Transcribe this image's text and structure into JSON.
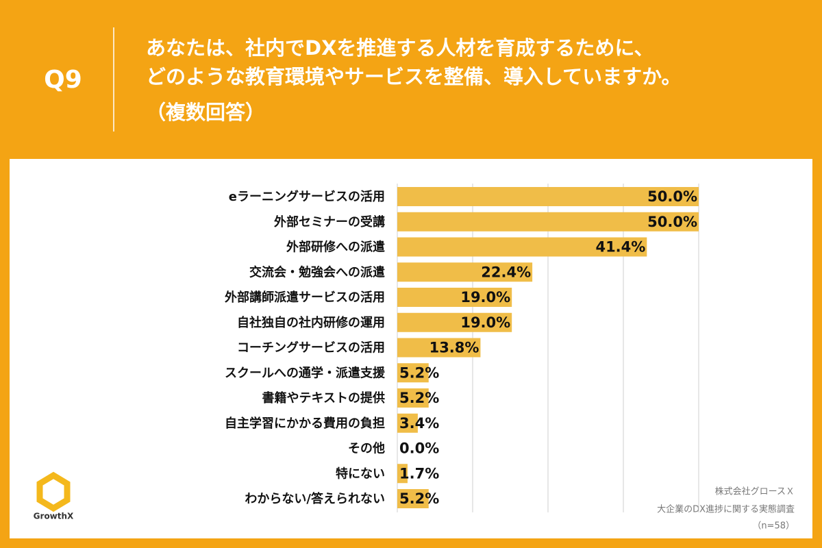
{
  "question_number": "Q9",
  "title_lines": [
    "あなたは、社内でDXを推進する人材を育成するために、",
    "どのような教育環境やサービスを整備、導入していますか。",
    "（複数回答）"
  ],
  "logo_text": "GrowthX",
  "source_lines": [
    "株式会社グロースＸ",
    "大企業のDX進捗に関する実態調査",
    "（n=58）"
  ],
  "chart_data": {
    "type": "bar",
    "orientation": "horizontal",
    "color": "#f0bd48",
    "categories": [
      "eラーニングサービスの活用",
      "外部セミナーの受講",
      "外部研修への派遣",
      "交流会・勉強会への派遣",
      "外部講師派遣サービスの活用",
      "自社独自の社内研修の運用",
      "コーチングサービスの活用",
      "スクールへの通学・派遣支援",
      "書籍やテキストの提供",
      "自主学習にかかる費用の負担",
      "その他",
      "特にない",
      "わからない/答えられない"
    ],
    "values": [
      50.0,
      50.0,
      41.4,
      22.4,
      19.0,
      19.0,
      13.8,
      5.2,
      5.2,
      3.4,
      0.0,
      1.7,
      5.2
    ],
    "value_labels": [
      "50.0%",
      "50.0%",
      "41.4%",
      "22.4%",
      "19.0%",
      "19.0%",
      "13.8%",
      "5.2%",
      "5.2%",
      "3.4%",
      "0.0%",
      "1.7%",
      "5.2%"
    ],
    "xlim": [
      0,
      50
    ],
    "xticks": [
      0,
      12.5,
      25,
      37.5,
      50
    ],
    "grid": true
  }
}
